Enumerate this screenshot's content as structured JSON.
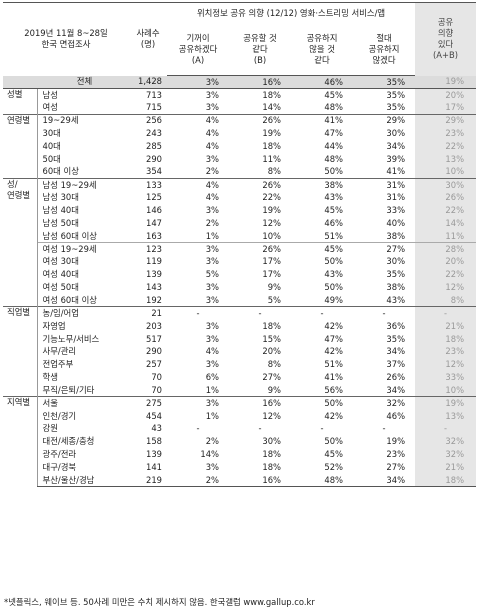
{
  "header": {
    "survey": "2019년 11월 8~28일\n한국 면접조사",
    "base": "사례수\n(명)",
    "question": "위치정보 공유 의향 (12/12) 영화·스트리밍 서비스/앱",
    "cols": [
      "기꺼이\n공유하겠다\n(A)",
      "공유할 것\n같다\n(B)",
      "공유하지\n않을 것\n같다",
      "절대\n공유하지\n않겠다"
    ],
    "yes": "공유\n의향\n있다\n(A+B)"
  },
  "rows": [
    {
      "group": "",
      "label": "전체",
      "n": "1,428",
      "a": "3%",
      "b": "16%",
      "c": "46%",
      "d": "35%",
      "ab": "19%"
    },
    {
      "group": "성별",
      "label": "남성",
      "n": "713",
      "a": "3%",
      "b": "18%",
      "c": "45%",
      "d": "35%",
      "ab": "20%"
    },
    {
      "group": "",
      "label": "여성",
      "n": "715",
      "a": "3%",
      "b": "14%",
      "c": "48%",
      "d": "35%",
      "ab": "17%"
    },
    {
      "group": "연령별",
      "label": "19~29세",
      "n": "256",
      "a": "4%",
      "b": "26%",
      "c": "41%",
      "d": "29%",
      "ab": "29%"
    },
    {
      "group": "",
      "label": "30대",
      "n": "243",
      "a": "4%",
      "b": "19%",
      "c": "47%",
      "d": "30%",
      "ab": "23%"
    },
    {
      "group": "",
      "label": "40대",
      "n": "285",
      "a": "4%",
      "b": "18%",
      "c": "44%",
      "d": "34%",
      "ab": "22%"
    },
    {
      "group": "",
      "label": "50대",
      "n": "290",
      "a": "3%",
      "b": "11%",
      "c": "48%",
      "d": "39%",
      "ab": "13%"
    },
    {
      "group": "",
      "label": "60대 이상",
      "n": "354",
      "a": "2%",
      "b": "8%",
      "c": "50%",
      "d": "41%",
      "ab": "10%"
    },
    {
      "group": "성/\n연령별",
      "label": "남성 19~29세",
      "n": "133",
      "a": "4%",
      "b": "26%",
      "c": "38%",
      "d": "31%",
      "ab": "30%"
    },
    {
      "group": "",
      "label": "남성 30대",
      "n": "125",
      "a": "4%",
      "b": "22%",
      "c": "43%",
      "d": "31%",
      "ab": "26%"
    },
    {
      "group": "",
      "label": "남성 40대",
      "n": "146",
      "a": "3%",
      "b": "19%",
      "c": "45%",
      "d": "33%",
      "ab": "22%"
    },
    {
      "group": "",
      "label": "남성 50대",
      "n": "147",
      "a": "2%",
      "b": "12%",
      "c": "46%",
      "d": "40%",
      "ab": "14%"
    },
    {
      "group": "",
      "label": "남성 60대 이상",
      "n": "163",
      "a": "1%",
      "b": "10%",
      "c": "51%",
      "d": "38%",
      "ab": "11%"
    },
    {
      "group": "",
      "label": "여성 19~29세",
      "n": "123",
      "a": "3%",
      "b": "26%",
      "c": "45%",
      "d": "27%",
      "ab": "28%"
    },
    {
      "group": "",
      "label": "여성 30대",
      "n": "119",
      "a": "3%",
      "b": "17%",
      "c": "50%",
      "d": "30%",
      "ab": "20%"
    },
    {
      "group": "",
      "label": "여성 40대",
      "n": "139",
      "a": "5%",
      "b": "17%",
      "c": "43%",
      "d": "35%",
      "ab": "22%"
    },
    {
      "group": "",
      "label": "여성 50대",
      "n": "143",
      "a": "3%",
      "b": "9%",
      "c": "50%",
      "d": "38%",
      "ab": "12%"
    },
    {
      "group": "",
      "label": "여성 60대 이상",
      "n": "192",
      "a": "3%",
      "b": "5%",
      "c": "49%",
      "d": "43%",
      "ab": "8%"
    },
    {
      "group": "직업별",
      "label": "농/임/어업",
      "n": "21",
      "a": "-",
      "b": "-",
      "c": "-",
      "d": "-",
      "ab": "-"
    },
    {
      "group": "",
      "label": "자영업",
      "n": "203",
      "a": "3%",
      "b": "18%",
      "c": "42%",
      "d": "36%",
      "ab": "21%"
    },
    {
      "group": "",
      "label": "기능노무/서비스",
      "n": "517",
      "a": "3%",
      "b": "15%",
      "c": "47%",
      "d": "35%",
      "ab": "18%"
    },
    {
      "group": "",
      "label": "사무/관리",
      "n": "290",
      "a": "4%",
      "b": "20%",
      "c": "42%",
      "d": "34%",
      "ab": "23%"
    },
    {
      "group": "",
      "label": "전업주부",
      "n": "257",
      "a": "3%",
      "b": "8%",
      "c": "51%",
      "d": "37%",
      "ab": "12%"
    },
    {
      "group": "",
      "label": "학생",
      "n": "70",
      "a": "6%",
      "b": "27%",
      "c": "41%",
      "d": "26%",
      "ab": "33%"
    },
    {
      "group": "",
      "label": "무직/은퇴/기타",
      "n": "70",
      "a": "1%",
      "b": "9%",
      "c": "56%",
      "d": "34%",
      "ab": "10%"
    },
    {
      "group": "지역별",
      "label": "서울",
      "n": "275",
      "a": "3%",
      "b": "16%",
      "c": "50%",
      "d": "32%",
      "ab": "19%"
    },
    {
      "group": "",
      "label": "인천/경기",
      "n": "454",
      "a": "1%",
      "b": "12%",
      "c": "42%",
      "d": "46%",
      "ab": "13%"
    },
    {
      "group": "",
      "label": "강원",
      "n": "43",
      "a": "-",
      "b": "-",
      "c": "-",
      "d": "-",
      "ab": "-"
    },
    {
      "group": "",
      "label": "대전/세종/충청",
      "n": "158",
      "a": "2%",
      "b": "30%",
      "c": "50%",
      "d": "19%",
      "ab": "32%"
    },
    {
      "group": "",
      "label": "광주/전라",
      "n": "139",
      "a": "14%",
      "b": "18%",
      "c": "45%",
      "d": "23%",
      "ab": "32%"
    },
    {
      "group": "",
      "label": "대구/경북",
      "n": "141",
      "a": "3%",
      "b": "18%",
      "c": "52%",
      "d": "27%",
      "ab": "21%"
    },
    {
      "group": "",
      "label": "부산/울산/경남",
      "n": "219",
      "a": "2%",
      "b": "16%",
      "c": "48%",
      "d": "34%",
      "ab": "18%"
    }
  ],
  "footnote": "*넷플릭스, 웨이브 등. 50사례 미만은 수치 제시하지 않음. 한국갤럽 www.gallup.co.kr"
}
